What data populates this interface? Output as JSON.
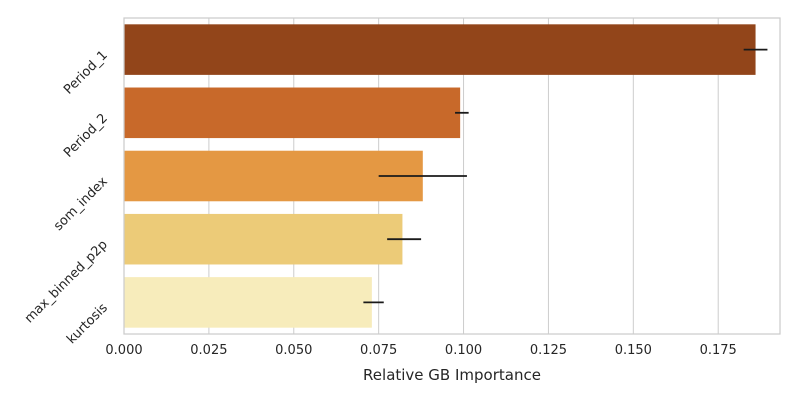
{
  "chart_data": {
    "type": "bar",
    "orientation": "horizontal",
    "categories": [
      "Period_1",
      "Period_2",
      "som_index",
      "max_binned_p2p",
      "kurtosis"
    ],
    "values": [
      0.186,
      0.099,
      0.088,
      0.082,
      0.073
    ],
    "error_low": [
      0.1825,
      0.0975,
      0.075,
      0.0775,
      0.0705
    ],
    "error_high": [
      0.1895,
      0.1015,
      0.101,
      0.0875,
      0.0765
    ],
    "colors": [
      "#92451a",
      "#c8692a",
      "#e49843",
      "#eccb78",
      "#f7ecbb"
    ],
    "xlabel": "Relative GB Importance",
    "ylabel": "",
    "xlim": [
      0,
      0.1932
    ],
    "xticks": [
      0.0,
      0.025,
      0.05,
      0.075,
      0.1,
      0.125,
      0.15,
      0.175
    ],
    "xtick_labels": [
      "0.000",
      "0.025",
      "0.050",
      "0.075",
      "0.100",
      "0.125",
      "0.150",
      "0.175"
    ],
    "grid": "vertical",
    "legend": "none"
  }
}
